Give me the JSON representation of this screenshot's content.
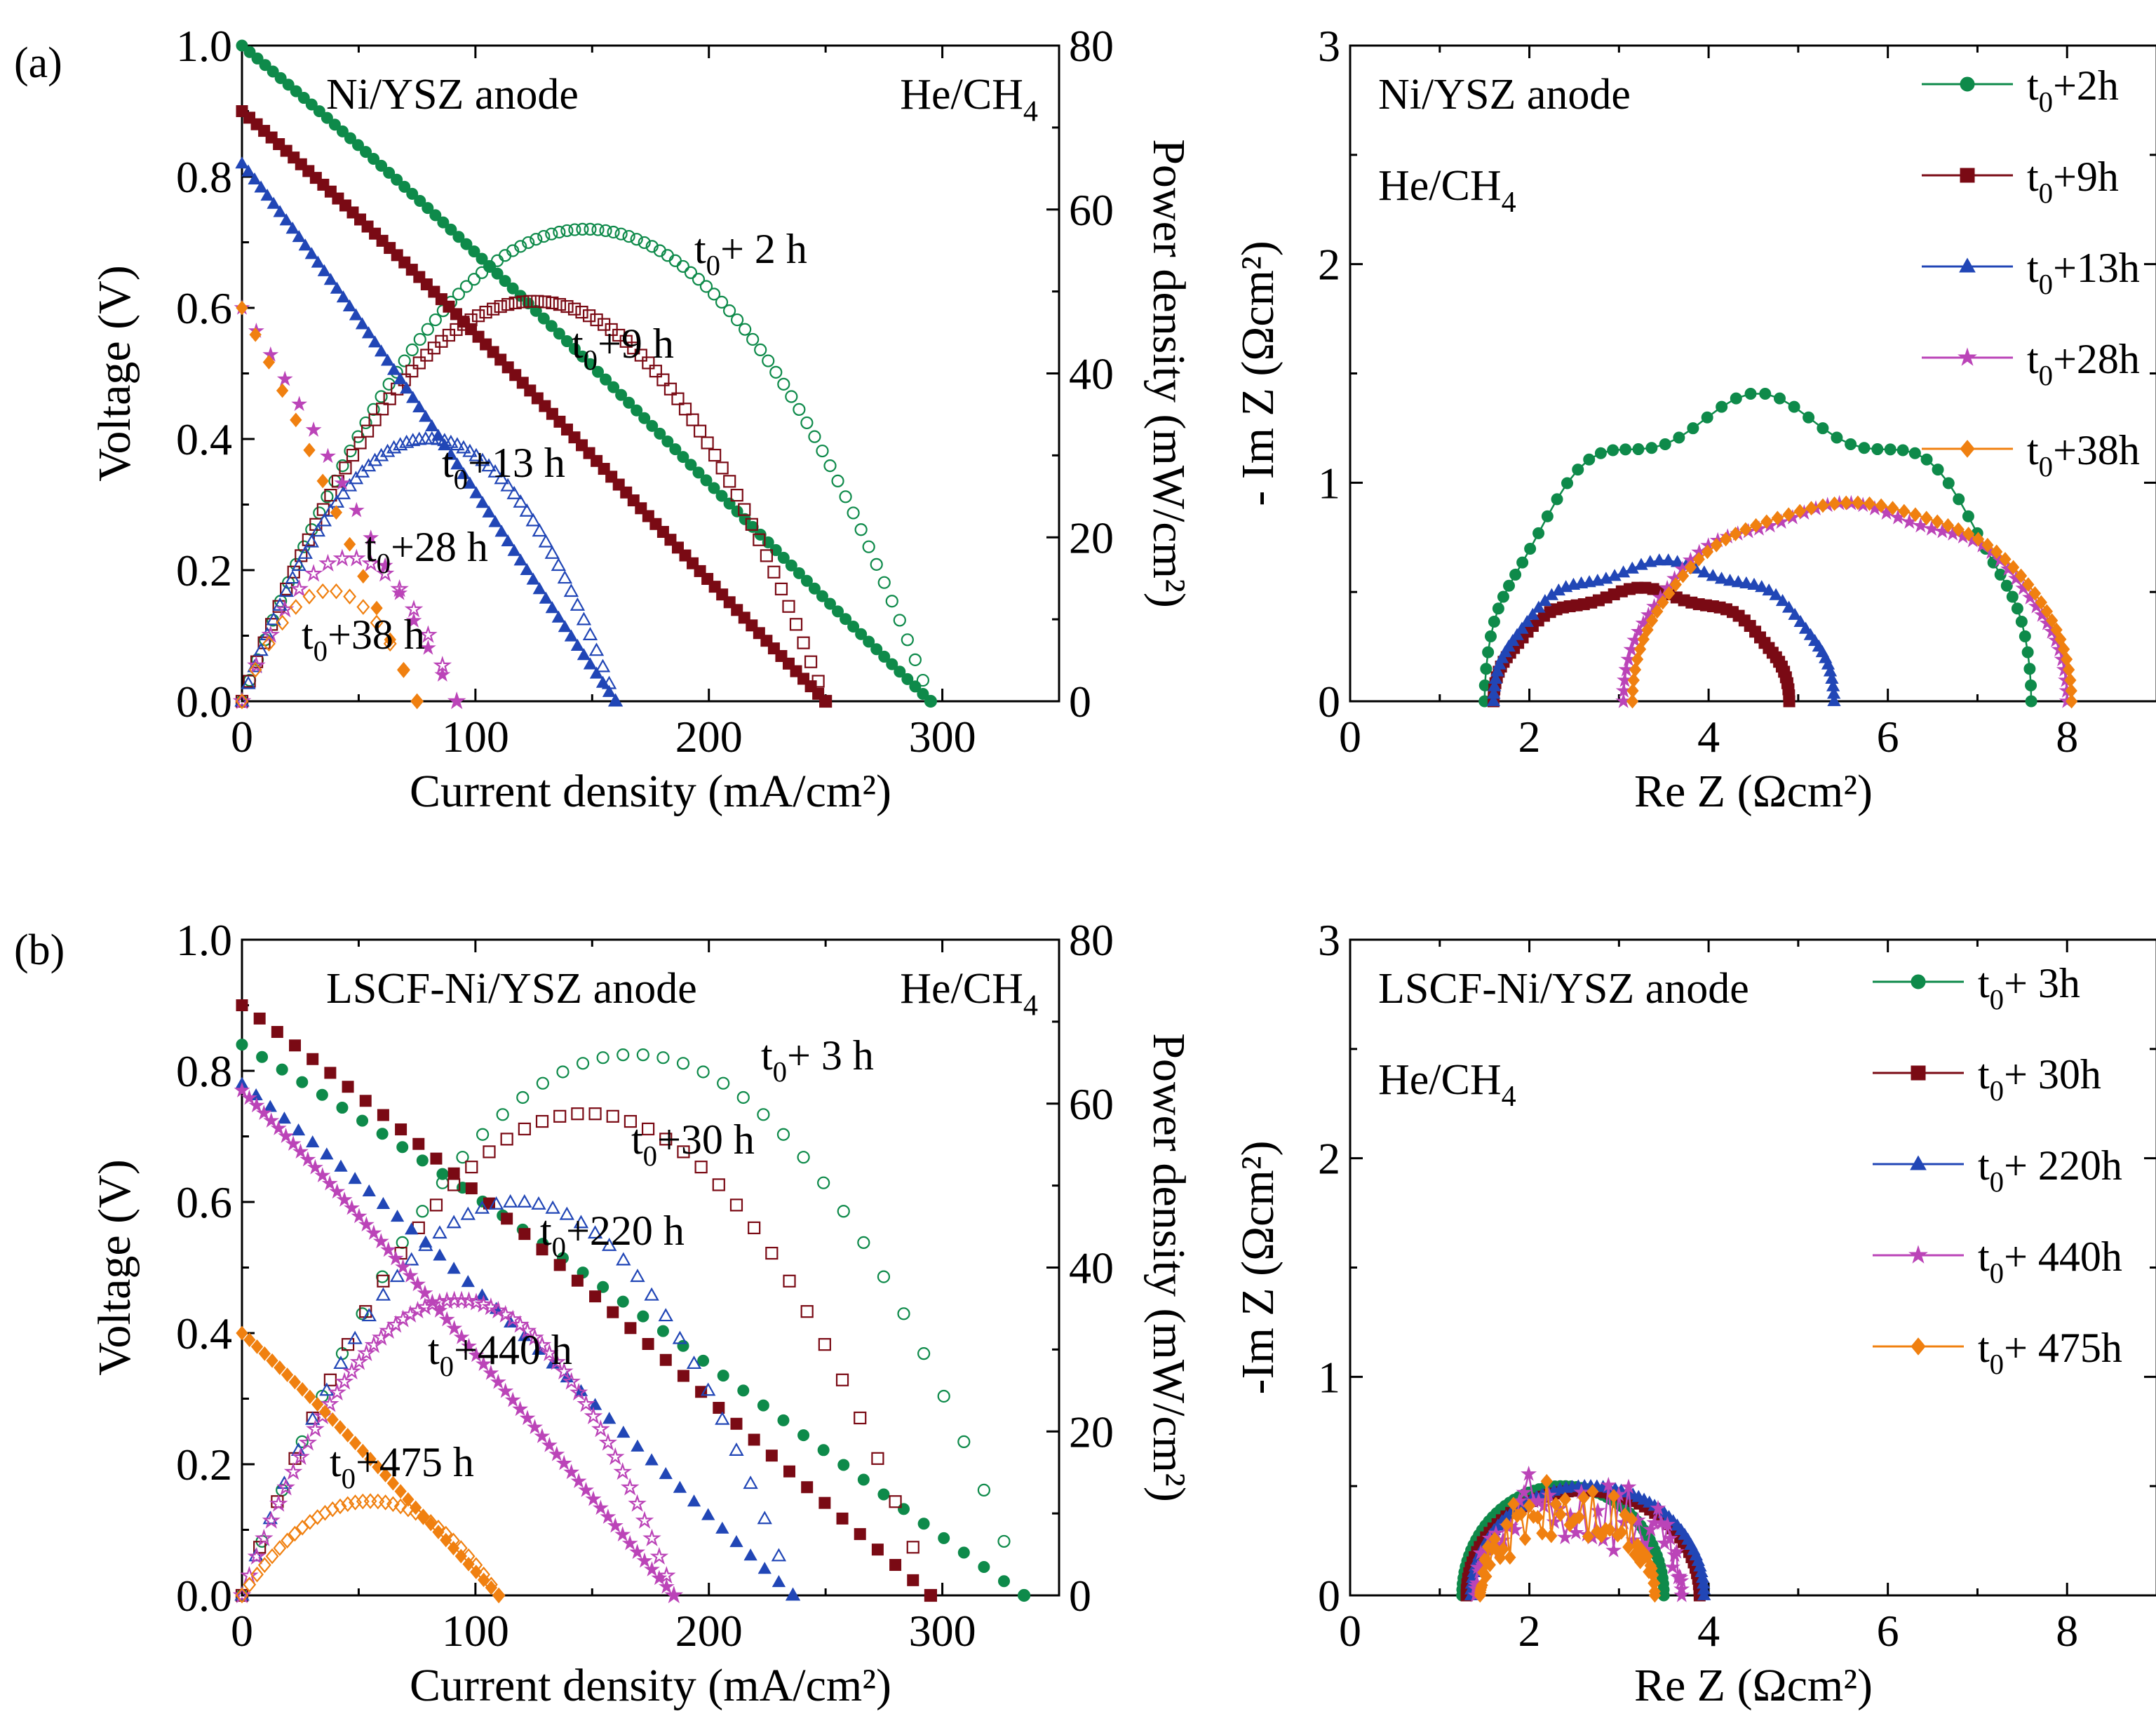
{
  "panel_labels": [
    "(a)",
    "(b)"
  ],
  "colors": {
    "c1": "#0e8a4a",
    "c2": "#7a0a14",
    "c3": "#2146b6",
    "c4": "#bb44b8",
    "c5": "#f08010"
  },
  "chart_data": [
    {
      "type": "line",
      "title": "",
      "annotation_left": "Ni/YSZ anode",
      "annotation_right": {
        "base": "He/CH",
        "sub": "4"
      },
      "xlabel": "Current density (mA/cm²)",
      "ylabel": "Voltage (V)",
      "y2label": "Power density (mW/cm²)",
      "xlim": [
        0,
        350
      ],
      "ylim": [
        0,
        1.0
      ],
      "y2lim": [
        0,
        80
      ],
      "xticks": [
        "0",
        "100",
        "200",
        "300"
      ],
      "yticks": [
        "0.0",
        "0.2",
        "0.4",
        "0.6",
        "0.8",
        "1.0"
      ],
      "y2ticks": [
        "0",
        "20",
        "40",
        "60",
        "80"
      ],
      "series": [
        {
          "name": "t0+ 2 h",
          "label": {
            "t": "t",
            "sub": "0",
            "rest": "+ 2 h"
          },
          "color": "#0e8a4a",
          "ocv": 1.0,
          "jmax": 295,
          "npts": 90,
          "pmax": 57.6
        },
        {
          "name": "t0+9 h",
          "label": {
            "t": "t",
            "sub": "0",
            "rest": "+9 h"
          },
          "color": "#7a0a14",
          "ocv": 0.9,
          "jmax": 250,
          "npts": 80,
          "pmax": 48.8
        },
        {
          "name": "t0+13 h",
          "label": {
            "t": "t",
            "sub": "0",
            "rest": "+13 h"
          },
          "color": "#2146b6",
          "ocv": 0.82,
          "jmax": 160,
          "npts": 60,
          "pmax": 32.0
        },
        {
          "name": "t0+28 h",
          "label": {
            "t": "t",
            "sub": "0",
            "rest": "+28 h"
          },
          "color": "#bb44b8",
          "ocv": 0.6,
          "jmax": 92,
          "npts": 16,
          "pmax": 17.5
        },
        {
          "name": "t0+38 h",
          "label": {
            "t": "t",
            "sub": "0",
            "rest": "+38 h"
          },
          "color": "#f08010",
          "ocv": 0.6,
          "jmax": 75,
          "npts": 14,
          "pmax": 13.5
        }
      ]
    },
    {
      "type": "scatter",
      "title": "",
      "annotation_left": "Ni/YSZ anode",
      "annotation_right": {
        "base": "He/CH",
        "sub": "4"
      },
      "xlabel": "Re Z (Ωcm²)",
      "ylabel": "- Im Z (Ωcm²)",
      "xlim": [
        0,
        9
      ],
      "ylim": [
        0,
        3
      ],
      "xticks": [
        "0",
        "2",
        "4",
        "6",
        "8"
      ],
      "yticks": [
        "0",
        "1",
        "2",
        "3"
      ],
      "legend_position": "top-right",
      "series": [
        {
          "name": "t0+2h",
          "legend": {
            "t": "t",
            "sub": "0",
            "rest": "+2h"
          },
          "color": "#0e8a4a",
          "marker": "circle",
          "x0": 1.5,
          "x1": 7.6,
          "h": 1.33,
          "ripple": 0.06,
          "noise": 0
        },
        {
          "name": "t0+9h",
          "legend": {
            "t": "t",
            "sub": "0",
            "rest": "+9h"
          },
          "color": "#7a0a14",
          "marker": "square",
          "x0": 1.6,
          "x1": 4.9,
          "h": 0.5,
          "ripple": 0.04,
          "noise": 0
        },
        {
          "name": "t0+13h",
          "legend": {
            "t": "t",
            "sub": "0",
            "rest": "+13h"
          },
          "color": "#2146b6",
          "marker": "triangle",
          "x0": 1.6,
          "x1": 5.4,
          "h": 0.62,
          "ripple": 0.04,
          "noise": 0
        },
        {
          "name": "t0+28h",
          "legend": {
            "t": "t",
            "sub": "0",
            "rest": "+28h"
          },
          "color": "#bb44b8",
          "marker": "star",
          "x0": 3.05,
          "x1": 8.0,
          "h": 0.88,
          "ripple": 0.03,
          "noise": 0
        },
        {
          "name": "t0+38h",
          "legend": {
            "t": "t",
            "sub": "0",
            "rest": "+38h"
          },
          "color": "#f08010",
          "marker": "diamond",
          "x0": 3.15,
          "x1": 8.05,
          "h": 0.9,
          "ripple": 0.01,
          "noise": 0
        }
      ]
    },
    {
      "type": "line",
      "title": "",
      "annotation_left": "LSCF-Ni/YSZ anode",
      "annotation_right": {
        "base": "He/CH",
        "sub": "4"
      },
      "xlabel": "Current density (mA/cm²)",
      "ylabel": "Voltage (V)",
      "y2label": "Power density (mW/cm²)",
      "xlim": [
        0,
        350
      ],
      "ylim": [
        0,
        1.0
      ],
      "y2lim": [
        0,
        80
      ],
      "xticks": [
        "0",
        "100",
        "200",
        "300"
      ],
      "yticks": [
        "0.0",
        "0.2",
        "0.4",
        "0.6",
        "0.8",
        "1.0"
      ],
      "y2ticks": [
        "0",
        "20",
        "40",
        "60",
        "80"
      ],
      "series": [
        {
          "name": "t0+ 3 h",
          "label": {
            "t": "t",
            "sub": "0",
            "rest": "+ 3 h"
          },
          "color": "#0e8a4a",
          "ocv": 0.84,
          "jmax": 335,
          "npts": 40,
          "pmax": 66.0
        },
        {
          "name": "t0+30 h",
          "label": {
            "t": "t",
            "sub": "0",
            "rest": "+30 h"
          },
          "color": "#7a0a14",
          "ocv": 0.9,
          "jmax": 295,
          "npts": 40,
          "pmax": 58.8
        },
        {
          "name": "t0+220 h",
          "label": {
            "t": "t",
            "sub": "0",
            "rest": "+220 h"
          },
          "color": "#2146b6",
          "ocv": 0.78,
          "jmax": 236,
          "npts": 40,
          "pmax": 48.0
        },
        {
          "name": "t0+440 h",
          "label": {
            "t": "t",
            "sub": "0",
            "rest": "+440 h"
          },
          "color": "#bb44b8",
          "ocv": 0.77,
          "jmax": 185,
          "npts": 60,
          "pmax": 36.0
        },
        {
          "name": "t0+475 h",
          "label": {
            "t": "t",
            "sub": "0",
            "rest": "+475 h"
          },
          "color": "#f08010",
          "ocv": 0.4,
          "jmax": 110,
          "npts": 35,
          "pmax": 11.5
        }
      ]
    },
    {
      "type": "scatter",
      "title": "",
      "annotation_left": "LSCF-Ni/YSZ anode",
      "annotation_right": {
        "base": "He/CH",
        "sub": "4"
      },
      "xlabel": "Re Z (Ωcm²)",
      "ylabel": "-Im Z (Ωcm²)",
      "xlim": [
        0,
        9
      ],
      "ylim": [
        0,
        3
      ],
      "xticks": [
        "0",
        "2",
        "4",
        "6",
        "8"
      ],
      "yticks": [
        "0",
        "1",
        "2",
        "3"
      ],
      "legend_position": "top-right",
      "series": [
        {
          "name": "t0+ 3h",
          "legend": {
            "t": "t",
            "sub": "0",
            "rest": "+ 3h"
          },
          "color": "#0e8a4a",
          "marker": "circle",
          "x0": 1.25,
          "x1": 3.5,
          "h": 0.5,
          "ripple": 0,
          "noise": 0
        },
        {
          "name": "t0+ 30h",
          "legend": {
            "t": "t",
            "sub": "0",
            "rest": "+ 30h"
          },
          "color": "#7a0a14",
          "marker": "square",
          "x0": 1.3,
          "x1": 3.9,
          "h": 0.48,
          "ripple": 0,
          "noise": 0
        },
        {
          "name": "t0+ 220h",
          "legend": {
            "t": "t",
            "sub": "0",
            "rest": "+ 220h"
          },
          "color": "#2146b6",
          "marker": "triangle",
          "x0": 1.35,
          "x1": 3.95,
          "h": 0.5,
          "ripple": 0,
          "noise": 0
        },
        {
          "name": "t0+ 440h",
          "legend": {
            "t": "t",
            "sub": "0",
            "rest": "+ 440h"
          },
          "color": "#bb44b8",
          "marker": "star",
          "x0": 1.4,
          "x1": 3.7,
          "h": 0.42,
          "ripple": 0,
          "noise": 0.22
        },
        {
          "name": "t0+ 475h",
          "legend": {
            "t": "t",
            "sub": "0",
            "rest": "+ 475h"
          },
          "color": "#f08010",
          "marker": "diamond",
          "x0": 1.45,
          "x1": 3.4,
          "h": 0.38,
          "ripple": 0,
          "noise": 0.16
        }
      ]
    }
  ]
}
